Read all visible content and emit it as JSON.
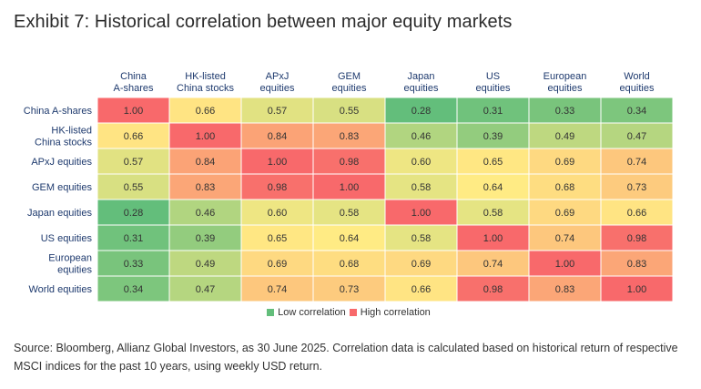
{
  "title": "Exhibit 7: Historical correlation between major equity markets",
  "chart_data": {
    "type": "heatmap",
    "columns": [
      [
        "China",
        "A-shares"
      ],
      [
        "HK-listed",
        "China stocks"
      ],
      [
        "APxJ",
        "equities"
      ],
      [
        "GEM",
        "equities"
      ],
      [
        "Japan",
        "equities"
      ],
      [
        "US",
        "equities"
      ],
      [
        "European",
        "equities"
      ],
      [
        "World",
        "equities"
      ]
    ],
    "rows": [
      [
        "China A-shares"
      ],
      [
        "HK-listed",
        "China stocks"
      ],
      [
        "APxJ equities"
      ],
      [
        "GEM equities"
      ],
      [
        "Japan equities"
      ],
      [
        "US equities"
      ],
      [
        "European",
        "equities"
      ],
      [
        "World equities"
      ]
    ],
    "values": [
      [
        1.0,
        0.66,
        0.57,
        0.55,
        0.28,
        0.31,
        0.33,
        0.34
      ],
      [
        0.66,
        1.0,
        0.84,
        0.83,
        0.46,
        0.39,
        0.49,
        0.47
      ],
      [
        0.57,
        0.84,
        1.0,
        0.98,
        0.6,
        0.65,
        0.69,
        0.74
      ],
      [
        0.55,
        0.83,
        0.98,
        1.0,
        0.58,
        0.64,
        0.68,
        0.73
      ],
      [
        0.28,
        0.46,
        0.6,
        0.58,
        1.0,
        0.58,
        0.69,
        0.66
      ],
      [
        0.31,
        0.39,
        0.65,
        0.64,
        0.58,
        1.0,
        0.74,
        0.98
      ],
      [
        0.33,
        0.49,
        0.69,
        0.68,
        0.69,
        0.74,
        1.0,
        0.83
      ],
      [
        0.34,
        0.47,
        0.74,
        0.73,
        0.66,
        0.98,
        0.83,
        1.0
      ]
    ],
    "color_scale": {
      "low": "#63be7b",
      "mid": "#ffeb84",
      "high": "#f8696b",
      "min_value": 0.28,
      "mid_value": 0.64,
      "max_value": 1.0
    },
    "legend": [
      {
        "label": "Low correlation",
        "color": "#63be7b"
      },
      {
        "label": "High correlation",
        "color": "#f8696b"
      }
    ]
  },
  "source": "Source: Bloomberg, Allianz Global Investors, as 30 June 2025. Correlation data is calculated based on historical return of respective MSCI indices for the past 10 years, using weekly USD return."
}
